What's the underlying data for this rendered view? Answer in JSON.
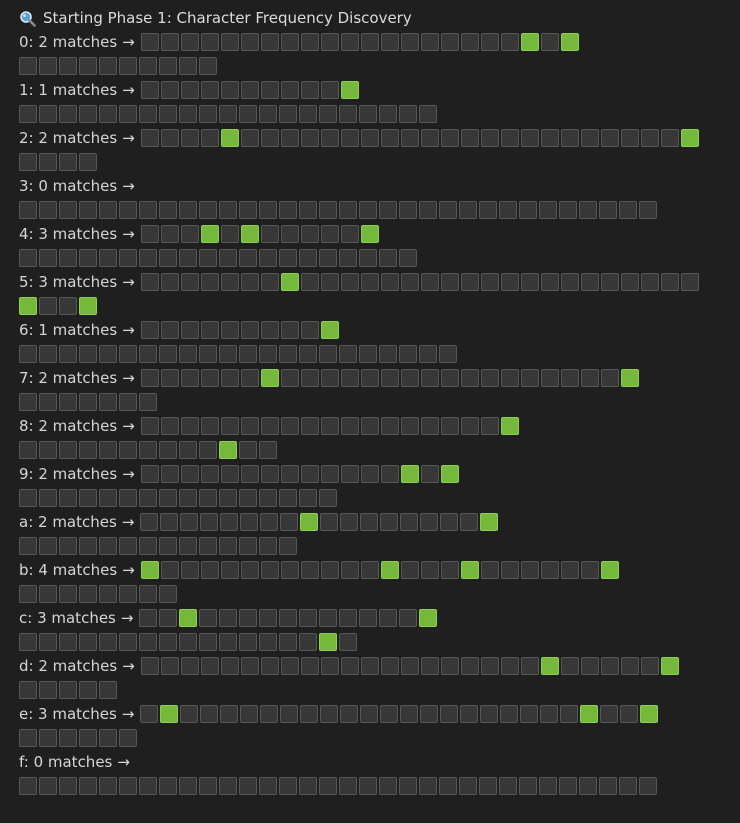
{
  "header": {
    "icon": "magnifier-icon",
    "text": "Starting Phase 1: Character Frequency Discovery"
  },
  "colors": {
    "background": "#1f1f1f",
    "text": "#d4d4d4",
    "hit_square": "#76b83b",
    "miss_square": "#373737"
  },
  "arrow": "→",
  "rows": [
    {
      "label": "0: 2 matches",
      "lines": [
        [
          "miss",
          "miss",
          "miss",
          "miss",
          "miss",
          "miss",
          "miss",
          "miss",
          "miss",
          "miss",
          "miss",
          "miss",
          "miss",
          "miss",
          "miss",
          "miss",
          "miss",
          "miss",
          "miss",
          "hit",
          "miss",
          "hit"
        ],
        [
          "miss",
          "miss",
          "miss",
          "miss",
          "miss",
          "miss",
          "miss",
          "miss",
          "miss",
          "miss"
        ]
      ]
    },
    {
      "label": "1: 1 matches",
      "lines": [
        [
          "miss",
          "miss",
          "miss",
          "miss",
          "miss",
          "miss",
          "miss",
          "miss",
          "miss",
          "miss",
          "hit"
        ],
        [
          "miss",
          "miss",
          "miss",
          "miss",
          "miss",
          "miss",
          "miss",
          "miss",
          "miss",
          "miss",
          "miss",
          "miss",
          "miss",
          "miss",
          "miss",
          "miss",
          "miss",
          "miss",
          "miss",
          "miss",
          "miss"
        ]
      ]
    },
    {
      "label": "2: 2 matches",
      "lines": [
        [
          "miss",
          "miss",
          "miss",
          "miss",
          "hit",
          "miss",
          "miss",
          "miss",
          "miss",
          "miss",
          "miss",
          "miss",
          "miss",
          "miss",
          "miss",
          "miss",
          "miss",
          "miss",
          "miss",
          "miss",
          "miss",
          "miss",
          "miss",
          "miss",
          "miss",
          "miss",
          "miss",
          "hit"
        ],
        [
          "miss",
          "miss",
          "miss",
          "miss"
        ]
      ]
    },
    {
      "label": "3: 0 matches",
      "lines": [
        [],
        [
          "miss",
          "miss",
          "miss",
          "miss",
          "miss",
          "miss",
          "miss",
          "miss",
          "miss",
          "miss",
          "miss",
          "miss",
          "miss",
          "miss",
          "miss",
          "miss",
          "miss",
          "miss",
          "miss",
          "miss",
          "miss",
          "miss",
          "miss",
          "miss",
          "miss",
          "miss",
          "miss",
          "miss",
          "miss",
          "miss",
          "miss",
          "miss"
        ]
      ]
    },
    {
      "label": "4: 3 matches",
      "lines": [
        [
          "miss",
          "miss",
          "miss",
          "hit",
          "miss",
          "hit",
          "miss",
          "miss",
          "miss",
          "miss",
          "miss",
          "hit"
        ],
        [
          "miss",
          "miss",
          "miss",
          "miss",
          "miss",
          "miss",
          "miss",
          "miss",
          "miss",
          "miss",
          "miss",
          "miss",
          "miss",
          "miss",
          "miss",
          "miss",
          "miss",
          "miss",
          "miss",
          "miss"
        ]
      ]
    },
    {
      "label": "5: 3 matches",
      "lines": [
        [
          "miss",
          "miss",
          "miss",
          "miss",
          "miss",
          "miss",
          "miss",
          "hit",
          "miss",
          "miss",
          "miss",
          "miss",
          "miss",
          "miss",
          "miss",
          "miss",
          "miss",
          "miss",
          "miss",
          "miss",
          "miss",
          "miss",
          "miss",
          "miss",
          "miss",
          "miss",
          "miss",
          "miss"
        ],
        [
          "hit",
          "miss",
          "miss",
          "hit"
        ]
      ]
    },
    {
      "label": "6: 1 matches",
      "lines": [
        [
          "miss",
          "miss",
          "miss",
          "miss",
          "miss",
          "miss",
          "miss",
          "miss",
          "miss",
          "hit"
        ],
        [
          "miss",
          "miss",
          "miss",
          "miss",
          "miss",
          "miss",
          "miss",
          "miss",
          "miss",
          "miss",
          "miss",
          "miss",
          "miss",
          "miss",
          "miss",
          "miss",
          "miss",
          "miss",
          "miss",
          "miss",
          "miss",
          "miss"
        ]
      ]
    },
    {
      "label": "7: 2 matches",
      "lines": [
        [
          "miss",
          "miss",
          "miss",
          "miss",
          "miss",
          "miss",
          "hit",
          "miss",
          "miss",
          "miss",
          "miss",
          "miss",
          "miss",
          "miss",
          "miss",
          "miss",
          "miss",
          "miss",
          "miss",
          "miss",
          "miss",
          "miss",
          "miss",
          "miss",
          "hit"
        ],
        [
          "miss",
          "miss",
          "miss",
          "miss",
          "miss",
          "miss",
          "miss"
        ]
      ]
    },
    {
      "label": "8: 2 matches",
      "lines": [
        [
          "miss",
          "miss",
          "miss",
          "miss",
          "miss",
          "miss",
          "miss",
          "miss",
          "miss",
          "miss",
          "miss",
          "miss",
          "miss",
          "miss",
          "miss",
          "miss",
          "miss",
          "miss",
          "hit"
        ],
        [
          "miss",
          "miss",
          "miss",
          "miss",
          "miss",
          "miss",
          "miss",
          "miss",
          "miss",
          "miss",
          "hit",
          "miss",
          "miss"
        ]
      ]
    },
    {
      "label": "9: 2 matches",
      "lines": [
        [
          "miss",
          "miss",
          "miss",
          "miss",
          "miss",
          "miss",
          "miss",
          "miss",
          "miss",
          "miss",
          "miss",
          "miss",
          "miss",
          "hit",
          "miss",
          "hit"
        ],
        [
          "miss",
          "miss",
          "miss",
          "miss",
          "miss",
          "miss",
          "miss",
          "miss",
          "miss",
          "miss",
          "miss",
          "miss",
          "miss",
          "miss",
          "miss",
          "miss"
        ]
      ]
    },
    {
      "label": "a: 2 matches",
      "lines": [
        [
          "miss",
          "miss",
          "miss",
          "miss",
          "miss",
          "miss",
          "miss",
          "miss",
          "hit",
          "miss",
          "miss",
          "miss",
          "miss",
          "miss",
          "miss",
          "miss",
          "miss",
          "hit"
        ],
        [
          "miss",
          "miss",
          "miss",
          "miss",
          "miss",
          "miss",
          "miss",
          "miss",
          "miss",
          "miss",
          "miss",
          "miss",
          "miss",
          "miss"
        ]
      ]
    },
    {
      "label": "b: 4 matches",
      "lines": [
        [
          "hit",
          "miss",
          "miss",
          "miss",
          "miss",
          "miss",
          "miss",
          "miss",
          "miss",
          "miss",
          "miss",
          "miss",
          "hit",
          "miss",
          "miss",
          "miss",
          "hit",
          "miss",
          "miss",
          "miss",
          "miss",
          "miss",
          "miss",
          "hit"
        ],
        [
          "miss",
          "miss",
          "miss",
          "miss",
          "miss",
          "miss",
          "miss",
          "miss"
        ]
      ]
    },
    {
      "label": "c: 3 matches",
      "lines": [
        [
          "miss",
          "miss",
          "hit",
          "miss",
          "miss",
          "miss",
          "miss",
          "miss",
          "miss",
          "miss",
          "miss",
          "miss",
          "miss",
          "miss",
          "hit"
        ],
        [
          "miss",
          "miss",
          "miss",
          "miss",
          "miss",
          "miss",
          "miss",
          "miss",
          "miss",
          "miss",
          "miss",
          "miss",
          "miss",
          "miss",
          "miss",
          "hit",
          "miss"
        ]
      ]
    },
    {
      "label": "d: 2 matches",
      "lines": [
        [
          "miss",
          "miss",
          "miss",
          "miss",
          "miss",
          "miss",
          "miss",
          "miss",
          "miss",
          "miss",
          "miss",
          "miss",
          "miss",
          "miss",
          "miss",
          "miss",
          "miss",
          "miss",
          "miss",
          "miss",
          "hit",
          "miss",
          "miss",
          "miss",
          "miss",
          "miss",
          "hit"
        ],
        [
          "miss",
          "miss",
          "miss",
          "miss",
          "miss"
        ]
      ]
    },
    {
      "label": "e: 3 matches",
      "lines": [
        [
          "miss",
          "hit",
          "miss",
          "miss",
          "miss",
          "miss",
          "miss",
          "miss",
          "miss",
          "miss",
          "miss",
          "miss",
          "miss",
          "miss",
          "miss",
          "miss",
          "miss",
          "miss",
          "miss",
          "miss",
          "miss",
          "miss",
          "hit",
          "miss",
          "miss",
          "hit"
        ],
        [
          "miss",
          "miss",
          "miss",
          "miss",
          "miss",
          "miss"
        ]
      ]
    },
    {
      "label": "f: 0 matches",
      "lines": [
        [],
        [
          "miss",
          "miss",
          "miss",
          "miss",
          "miss",
          "miss",
          "miss",
          "miss",
          "miss",
          "miss",
          "miss",
          "miss",
          "miss",
          "miss",
          "miss",
          "miss",
          "miss",
          "miss",
          "miss",
          "miss",
          "miss",
          "miss",
          "miss",
          "miss",
          "miss",
          "miss",
          "miss",
          "miss",
          "miss",
          "miss",
          "miss",
          "miss"
        ]
      ]
    }
  ]
}
